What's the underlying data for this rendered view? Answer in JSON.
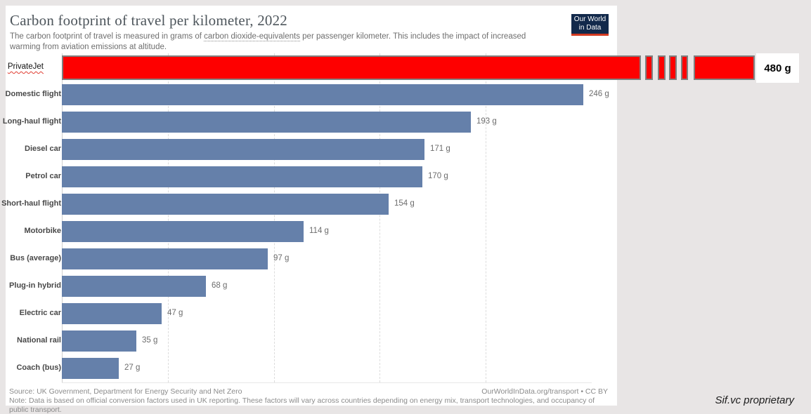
{
  "header": {
    "title": "Carbon footprint of travel per kilometer, 2022",
    "subtitle_before_link": "The carbon footprint of travel is measured in grams of ",
    "subtitle_link": "carbon dioxide-equivalents",
    "subtitle_after_link": " per passenger kilometer. This includes the impact of increased warming from aviation emissions at altitude.",
    "logo": {
      "line1": "Our World",
      "line2": "in Data"
    }
  },
  "chart_data": {
    "type": "bar",
    "orientation": "horizontal",
    "title": "Carbon footprint of travel per kilometer, 2022",
    "unit": "g CO2-equivalents per passenger-km",
    "categories": [
      "PrivateJet",
      "Domestic flight",
      "Long-haul flight",
      "Diesel car",
      "Petrol car",
      "Short-haul flight",
      "Motorbike",
      "Bus (average)",
      "Plug-in hybrid",
      "Electric car",
      "National rail",
      "Coach (bus)"
    ],
    "values": [
      480,
      246,
      193,
      171,
      170,
      154,
      114,
      97,
      68,
      47,
      35,
      27
    ],
    "value_labels": [
      "480 g",
      "246 g",
      "193 g",
      "171 g",
      "170 g",
      "154 g",
      "114 g",
      "97 g",
      "68 g",
      "47 g",
      "35 g",
      "27 g"
    ],
    "xlim": [
      0,
      250
    ],
    "gridline_values": [
      0,
      50,
      100,
      150,
      200
    ],
    "grid": "vertical-dashed",
    "legend": "none",
    "bar_color": "#6580aa",
    "highlight": {
      "category": "PrivateJet",
      "value": 480,
      "color": "#fe0000",
      "style": "bar overflows chart frame with axis-break marks; label has red wavy underline; value shown in white callout box"
    }
  },
  "footer": {
    "source": "Source: UK Government, Department for Energy Security and Net Zero",
    "note": "Note: Data is based on official conversion factors used in UK reporting. These factors will vary across countries depending on energy mix, transport technologies, and occupancy of public transport.",
    "citation": "OurWorldInData.org/transport • CC BY"
  },
  "watermark": {
    "text": "Sif.vc proprietary"
  },
  "colors": {
    "outer_background": "#e8e5e5",
    "card": "#ffffff",
    "bar_blue": "#6580aa",
    "highlight_red": "#fe0000",
    "segment_border": "#808080",
    "logo_navy": "#12294b",
    "logo_red": "#d23a21",
    "gridline": "#dcdcdc"
  }
}
